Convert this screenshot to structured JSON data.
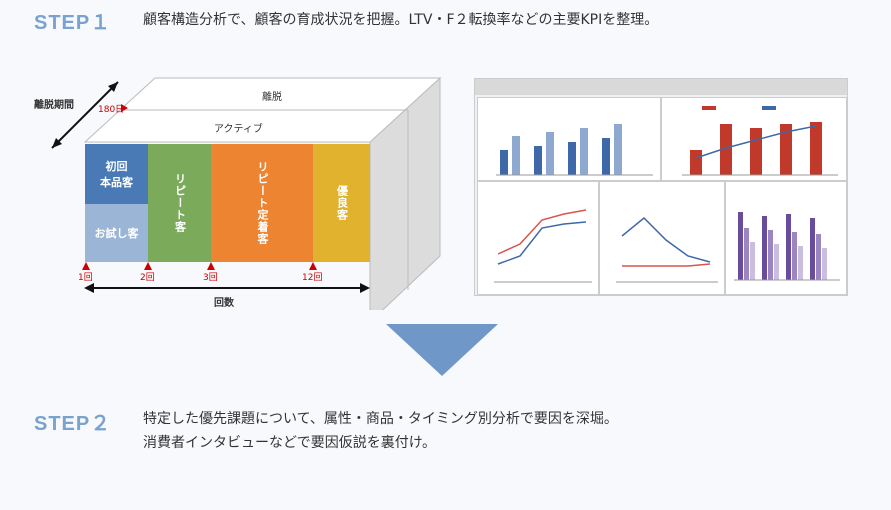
{
  "step1": {
    "label": "STEP１",
    "text": "顧客構造分析で、顧客の育成状況を把握。LTV・F２転換率などの主要KPIを整理。"
  },
  "diagram": {
    "axis_depth_label": "離脱期間",
    "depth_tick": "180日",
    "top_label_back": "離脱",
    "top_label_front": "アクティブ",
    "segments": {
      "first_a": "初回\n本品客",
      "first_b": "お試し客",
      "repeat": "リピート客",
      "fixed": "リピート定着客",
      "loyal": "優良客"
    },
    "ticks": [
      "1回",
      "2回",
      "3回",
      "12回"
    ],
    "x_label": "回数"
  },
  "step2": {
    "label": "STEP２",
    "line1": "特定した優先課題について、属性・商品・タイミング別分析で要因を深堀。",
    "line2": "消費者インタビューなどで要因仮説を裏付け。"
  },
  "colors": {
    "step_label": "#7aa2cf",
    "first": "#4a7ab5",
    "trial": "#9ab5d6",
    "repeat": "#7aaa5a",
    "fixed": "#ec8431",
    "loyal": "#e0b22e",
    "arrow": "#6f98c8"
  }
}
